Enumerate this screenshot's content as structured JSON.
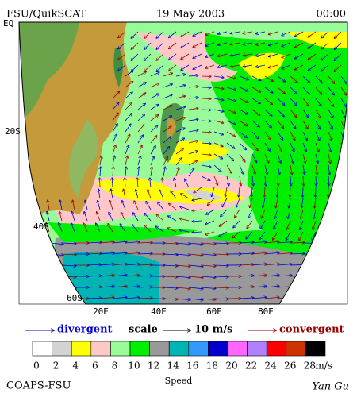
{
  "header": {
    "source": "FSU/QuikSCAT",
    "date": "19 May 2003",
    "time": "00:00"
  },
  "map": {
    "lat_labels": [
      "EQ",
      "20S",
      "40S",
      "60S"
    ],
    "lon_labels": [
      "20E",
      "40E",
      "60E",
      "80E"
    ]
  },
  "legend": {
    "divergent": "divergent",
    "scale": "scale",
    "scale_value": "10 m/s",
    "convergent": "convergent"
  },
  "colorbar": {
    "ticks": [
      0,
      2,
      4,
      6,
      8,
      10,
      12,
      14,
      16,
      18,
      20,
      22,
      24,
      26,
      28
    ],
    "unit": "m/s",
    "colors": [
      "#ffffff",
      "#d3d3d3",
      "#ffff00",
      "#ffc8c8",
      "#98fb98",
      "#00ee00",
      "#999999",
      "#00b4b4",
      "#3399ff",
      "#0000cc",
      "#ff66ff",
      "#b080ff",
      "#ff0000",
      "#cc3300",
      "#000000"
    ]
  },
  "footer": {
    "left": "COAPS-FSU",
    "center": "Speed",
    "right": "Yan Gu"
  }
}
